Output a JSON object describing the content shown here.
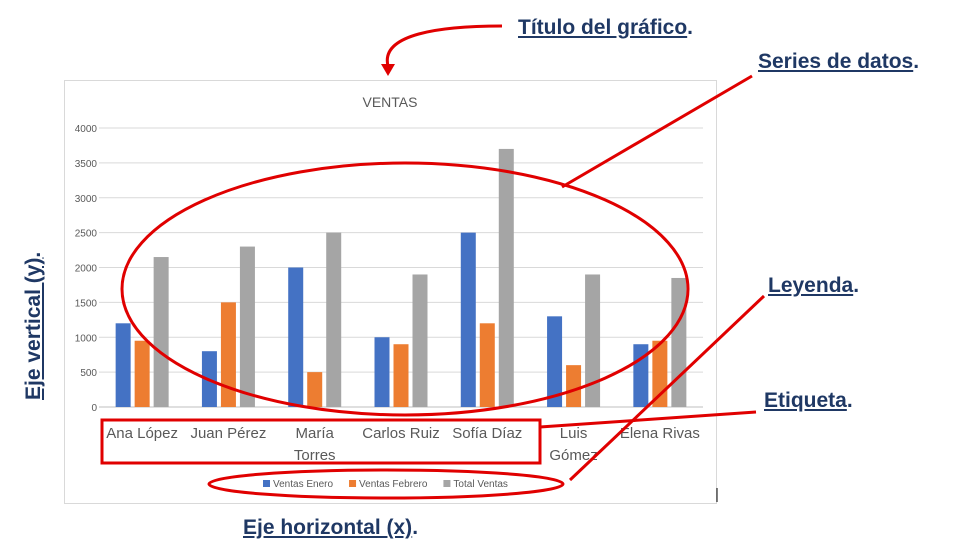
{
  "annotations": {
    "chart_title": "Título del gráfico",
    "data_series": "Series de datos",
    "legend": "Leyenda",
    "label": "Etiqueta",
    "y_axis": "Eje vertical (y)",
    "x_axis": "Eje horizontal (x)",
    "period": "."
  },
  "colors": {
    "annotation_text": "#1f3864",
    "annotation_red": "#e00000",
    "series": [
      "#4472c4",
      "#ed7d31",
      "#a5a5a5"
    ],
    "gridline": "#d9d9d9",
    "tick_text": "#595959"
  },
  "chart_data": {
    "type": "bar",
    "title": "VENTAS",
    "categories": [
      "Ana López",
      "Juan Pérez",
      "María Torres",
      "Carlos Ruiz",
      "Sofía Díaz",
      "Luis Gómez",
      "Elena Rivas"
    ],
    "category_label_lines": [
      [
        "Ana López"
      ],
      [
        "Juan Pérez"
      ],
      [
        "María",
        "Torres"
      ],
      [
        "Carlos Ruiz"
      ],
      [
        "Sofía Díaz"
      ],
      [
        "Luis",
        "Gómez"
      ],
      [
        "Elena Rivas"
      ]
    ],
    "series": [
      {
        "name": "Ventas Enero",
        "values": [
          1200,
          800,
          2000,
          1000,
          2500,
          1300,
          900
        ]
      },
      {
        "name": "Ventas Febrero",
        "values": [
          950,
          1500,
          500,
          900,
          1200,
          600,
          950
        ]
      },
      {
        "name": "Total Ventas",
        "values": [
          2150,
          2300,
          2500,
          1900,
          3700,
          1900,
          1850
        ]
      }
    ],
    "ylim": [
      0,
      4000
    ],
    "yticks": [
      "0",
      "500",
      "1000",
      "1500",
      "2000",
      "2500",
      "3000",
      "3500",
      "4000"
    ],
    "ytick_values": [
      0,
      500,
      1000,
      1500,
      2000,
      2500,
      3000,
      3500,
      4000
    ],
    "grid": true,
    "legend_position": "bottom",
    "xlabel": "",
    "ylabel": ""
  }
}
